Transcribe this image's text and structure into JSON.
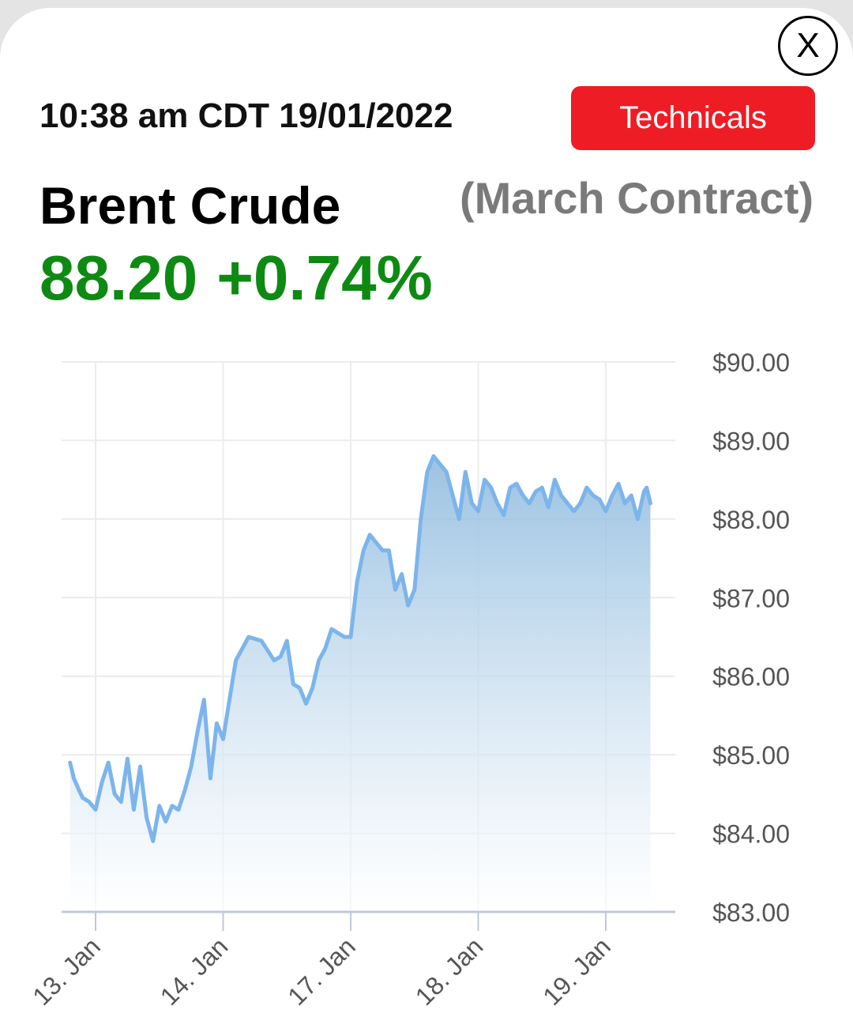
{
  "header": {
    "close_label": "X",
    "timestamp": "10:38 am CDT 19/01/2022",
    "technicals_label": "Technicals"
  },
  "quote": {
    "title": "Brent Crude",
    "contract": "(March Contract)",
    "price": "88.20",
    "change": "+0.74%"
  },
  "colors": {
    "accent_red": "#ee1c25",
    "positive_green": "#0d8a12",
    "series_line": "#7cb5ec"
  },
  "chart_data": {
    "type": "area",
    "title": "",
    "xlabel": "",
    "ylabel": "",
    "ylim": [
      83,
      90
    ],
    "y_ticks": [
      90,
      89,
      88,
      87,
      86,
      85,
      84,
      83
    ],
    "y_tick_labels": [
      "$90.00",
      "$89.00",
      "$88.00",
      "$87.00",
      "$86.00",
      "$85.00",
      "$84.00",
      "$83.00"
    ],
    "x_ticks": [
      0,
      1,
      2,
      3,
      4
    ],
    "x_tick_labels": [
      "13. Jan",
      "14. Jan",
      "17. Jan",
      "18. Jan",
      "19. Jan"
    ],
    "xlim": [
      -0.27,
      4.37
    ],
    "grid": true,
    "legend": "none",
    "series": [
      {
        "x": [
          -0.2,
          -0.17,
          -0.13,
          -0.1,
          -0.05,
          0,
          0.05,
          0.1,
          0.15,
          0.2,
          0.25,
          0.3,
          0.35,
          0.4,
          0.45,
          0.5,
          0.55,
          0.6,
          0.65,
          0.7,
          0.75,
          0.8,
          0.85,
          0.9,
          0.95,
          1,
          1.1,
          1.2,
          1.3,
          1.4,
          1.45,
          1.5,
          1.55,
          1.6,
          1.65,
          1.7,
          1.75,
          1.8,
          1.85,
          1.9,
          1.95,
          2,
          2.05,
          2.1,
          2.15,
          2.2,
          2.25,
          2.3,
          2.35,
          2.4,
          2.45,
          2.5,
          2.55,
          2.6,
          2.65,
          2.7,
          2.75,
          2.8,
          2.85,
          2.9,
          2.95,
          3,
          3.05,
          3.1,
          3.15,
          3.2,
          3.25,
          3.3,
          3.35,
          3.4,
          3.45,
          3.5,
          3.55,
          3.6,
          3.65,
          3.7,
          3.75,
          3.8,
          3.85,
          3.9,
          3.95,
          4,
          4.05,
          4.1,
          4.15,
          4.2,
          4.25,
          4.3,
          4.32,
          4.35
        ],
        "values": [
          84.9,
          84.7,
          84.55,
          84.45,
          84.4,
          84.3,
          84.65,
          84.9,
          84.5,
          84.4,
          84.95,
          84.3,
          84.85,
          84.2,
          83.9,
          84.35,
          84.15,
          84.35,
          84.3,
          84.55,
          84.85,
          85.3,
          85.7,
          84.7,
          85.4,
          85.2,
          86.2,
          86.5,
          86.45,
          86.2,
          86.25,
          86.45,
          85.9,
          85.85,
          85.65,
          85.85,
          86.2,
          86.35,
          86.6,
          86.55,
          86.5,
          86.5,
          87.2,
          87.6,
          87.8,
          87.7,
          87.6,
          87.6,
          87.1,
          87.3,
          86.9,
          87.1,
          88.0,
          88.6,
          88.8,
          88.7,
          88.6,
          88.3,
          88.0,
          88.6,
          88.2,
          88.1,
          88.5,
          88.4,
          88.2,
          88.05,
          88.4,
          88.45,
          88.3,
          88.2,
          88.35,
          88.4,
          88.15,
          88.5,
          88.3,
          88.2,
          88.1,
          88.2,
          88.4,
          88.3,
          88.25,
          88.1,
          88.3,
          88.45,
          88.2,
          88.3,
          88.0,
          88.35,
          88.4,
          88.2
        ]
      }
    ]
  }
}
